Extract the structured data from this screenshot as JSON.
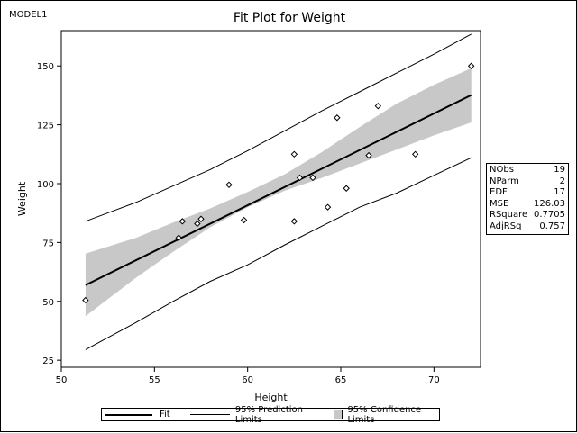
{
  "model_label": "MODEL1",
  "chart_data": {
    "type": "scatter",
    "title": "Fit Plot for Weight",
    "xlabel": "Height",
    "ylabel": "Weight",
    "xlim": [
      50,
      72.5
    ],
    "ylim": [
      22,
      165
    ],
    "xticks": [
      50,
      55,
      60,
      65,
      70
    ],
    "yticks": [
      25,
      50,
      75,
      100,
      125,
      150
    ],
    "grid": false,
    "legend_position": "bottom",
    "points": [
      {
        "x": 51.3,
        "y": 50.5
      },
      {
        "x": 56.3,
        "y": 77.0
      },
      {
        "x": 56.5,
        "y": 84.0
      },
      {
        "x": 57.3,
        "y": 83.0
      },
      {
        "x": 57.5,
        "y": 85.0
      },
      {
        "x": 59.0,
        "y": 99.5
      },
      {
        "x": 59.8,
        "y": 84.5
      },
      {
        "x": 62.5,
        "y": 112.5
      },
      {
        "x": 62.5,
        "y": 84.0
      },
      {
        "x": 62.8,
        "y": 102.5
      },
      {
        "x": 63.5,
        "y": 102.5
      },
      {
        "x": 64.3,
        "y": 90.0
      },
      {
        "x": 64.8,
        "y": 128.0
      },
      {
        "x": 65.3,
        "y": 98.0
      },
      {
        "x": 66.5,
        "y": 112.0
      },
      {
        "x": 67.0,
        "y": 133.0
      },
      {
        "x": 69.0,
        "y": 112.5
      },
      {
        "x": 72.0,
        "y": 150.0
      }
    ],
    "fit_line": {
      "name": "Fit",
      "x": [
        51.3,
        72.0
      ],
      "y": [
        56.9,
        137.6
      ]
    },
    "confidence_limits": {
      "name": "95% Confidence Limits",
      "x": [
        51.3,
        54,
        56,
        58,
        60,
        62,
        64,
        66,
        68,
        70,
        72.0
      ],
      "lower": [
        43.7,
        60.0,
        71.0,
        81.5,
        90.0,
        97.0,
        102.5,
        108.5,
        114.5,
        120.5,
        126.0
      ],
      "upper": [
        70.3,
        77.0,
        83.5,
        89.5,
        96.5,
        104.0,
        113.5,
        124.0,
        134.0,
        142.0,
        149.0
      ]
    },
    "prediction_limits": {
      "name": "95% Prediction Limits",
      "x": [
        51.3,
        54,
        56,
        58,
        60,
        62,
        64,
        66,
        68,
        70,
        72.0
      ],
      "lower": [
        29.5,
        41.0,
        50.0,
        58.5,
        65.5,
        74.0,
        82.0,
        90.0,
        96.0,
        103.5,
        111.0
      ],
      "upper": [
        84.0,
        92.0,
        99.0,
        106.0,
        114.0,
        122.5,
        131.0,
        139.0,
        147.0,
        155.0,
        163.5
      ]
    },
    "legend": {
      "fit": "Fit",
      "prediction": "95% Prediction Limits",
      "confidence": "95% Confidence Limits"
    },
    "stats": [
      {
        "label": "NObs",
        "value": "19"
      },
      {
        "label": "NParm",
        "value": "2"
      },
      {
        "label": "EDF",
        "value": "17"
      },
      {
        "label": "MSE",
        "value": "126.03"
      },
      {
        "label": "RSquare",
        "value": "0.7705"
      },
      {
        "label": "AdjRSq",
        "value": "0.757"
      }
    ]
  }
}
